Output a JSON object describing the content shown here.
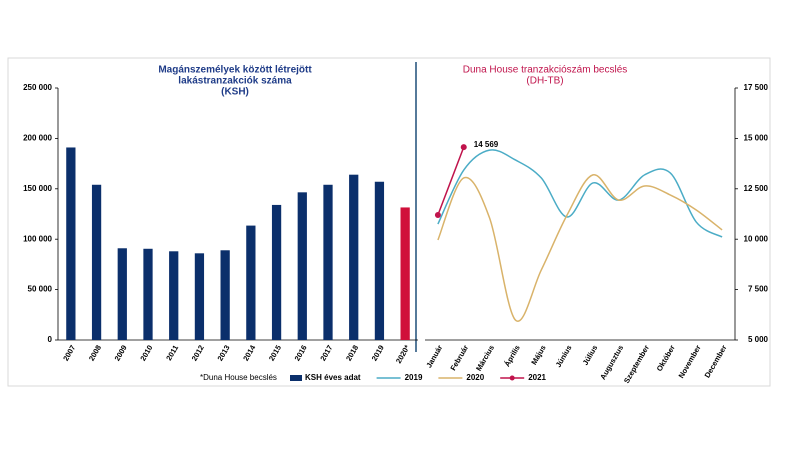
{
  "chart_data": [
    {
      "type": "bar",
      "title": [
        "Magánszemélyek között létrejött",
        "lakástranzakciók száma",
        "(KSH)"
      ],
      "title_color": "#1f3c88",
      "note": "*Duna House becslés",
      "categories": [
        "2007",
        "2008",
        "2009",
        "2010",
        "2011",
        "2012",
        "2013",
        "2014",
        "2015",
        "2016",
        "2017",
        "2018",
        "2019",
        "2020*"
      ],
      "series": [
        {
          "name": "KSH éves adat",
          "color": "#0b2f6b",
          "values": [
            191000,
            154000,
            91000,
            90500,
            88000,
            86000,
            89000,
            113500,
            134000,
            146500,
            154000,
            164000,
            157000,
            131500
          ],
          "colors": [
            "#0b2f6b",
            "#0b2f6b",
            "#0b2f6b",
            "#0b2f6b",
            "#0b2f6b",
            "#0b2f6b",
            "#0b2f6b",
            "#0b2f6b",
            "#0b2f6b",
            "#0b2f6b",
            "#0b2f6b",
            "#0b2f6b",
            "#0b2f6b",
            "#d0103a"
          ]
        }
      ],
      "ylim": [
        0,
        250000
      ],
      "yticks": [
        {
          "value": 0,
          "label": "0"
        },
        {
          "value": 50000,
          "label": "50 000"
        },
        {
          "value": 100000,
          "label": "100 000"
        },
        {
          "value": 150000,
          "label": "150 000"
        },
        {
          "value": 200000,
          "label": "200 000"
        },
        {
          "value": 250000,
          "label": "250 000"
        }
      ]
    },
    {
      "type": "line",
      "title": [
        "Duna House tranzakciószám becslés",
        "(DH-TB)"
      ],
      "title_color": "#c0144c",
      "categories": [
        "Január",
        "Február",
        "Március",
        "Április",
        "Május",
        "Június",
        "Július",
        "Augusztus",
        "Szeptember",
        "Október",
        "November",
        "December"
      ],
      "series": [
        {
          "name": "2019",
          "color": "#4bacc6",
          "values": [
            10750,
            13430,
            14420,
            13930,
            13040,
            11100,
            12790,
            11940,
            13190,
            13280,
            10850,
            10110
          ]
        },
        {
          "name": "2020",
          "color": "#d9b36a",
          "values": [
            9960,
            13040,
            11050,
            5990,
            8470,
            11200,
            13190,
            11940,
            12640,
            12190,
            11450,
            10460
          ]
        },
        {
          "name": "2021",
          "color": "#c0144c",
          "markers": true,
          "values": [
            11200,
            14569,
            null,
            null,
            null,
            null,
            null,
            null,
            null,
            null,
            null,
            null
          ],
          "value_labels": [
            null,
            "14 569",
            null,
            null,
            null,
            null,
            null,
            null,
            null,
            null,
            null,
            null
          ]
        }
      ],
      "axis_side": "right",
      "ylim": [
        5000,
        17500
      ],
      "yticks": [
        {
          "value": 5000,
          "label": "5 000"
        },
        {
          "value": 7500,
          "label": "7 500"
        },
        {
          "value": 10000,
          "label": "10 000"
        },
        {
          "value": 12500,
          "label": "12 500"
        },
        {
          "value": 15000,
          "label": "15 000"
        },
        {
          "value": 17500,
          "label": "17 500"
        }
      ]
    }
  ]
}
